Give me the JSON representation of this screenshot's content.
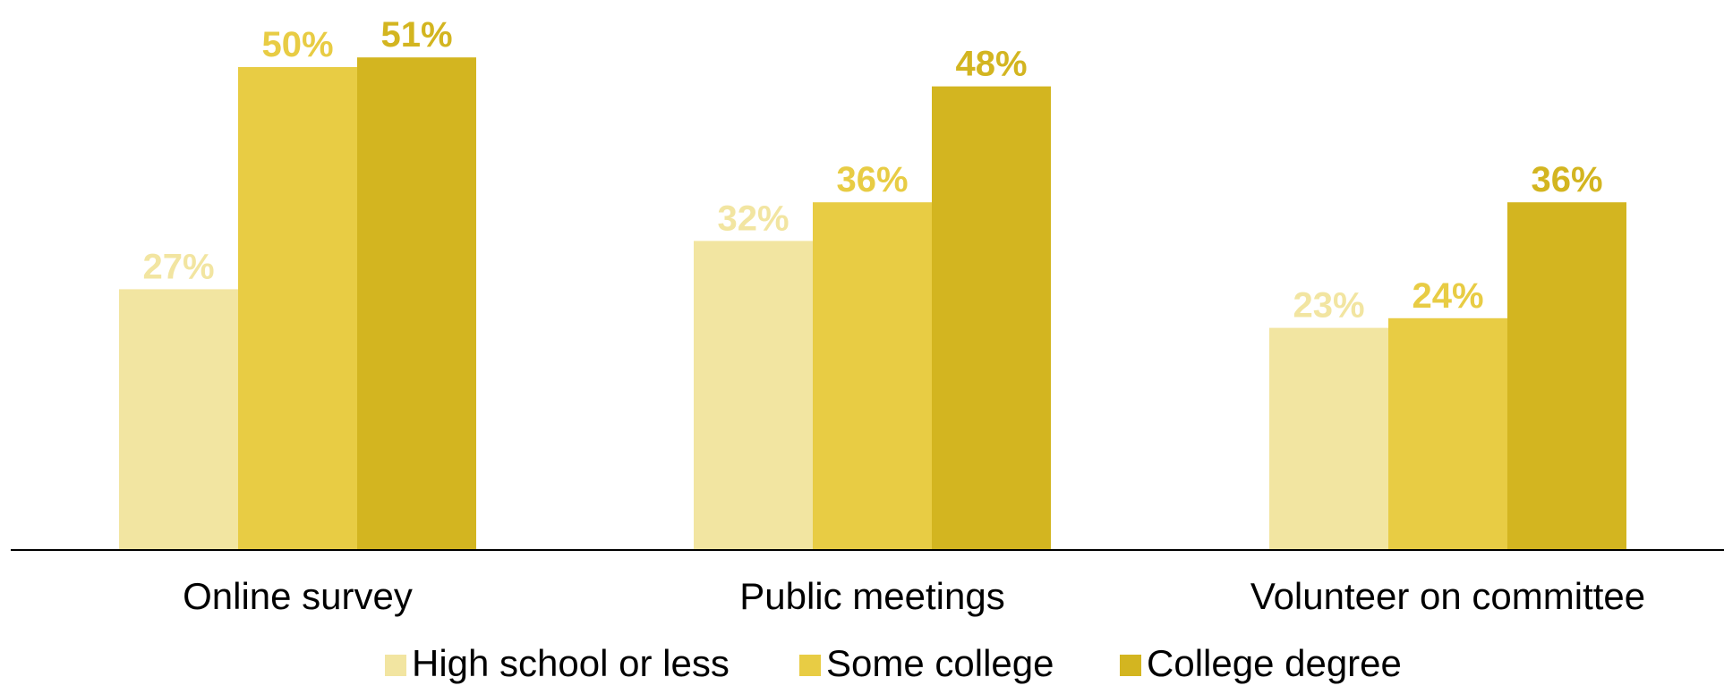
{
  "chart_data": {
    "type": "bar",
    "categories": [
      "Online survey",
      "Public meetings",
      "Volunteer on committee"
    ],
    "series": [
      {
        "name": "High school or less",
        "color": "#f2e5a1",
        "values": [
          27,
          32,
          23
        ],
        "labels": [
          "27%",
          "32%",
          "23%"
        ]
      },
      {
        "name": "Some college",
        "color": "#e8cc44",
        "values": [
          50,
          36,
          24
        ],
        "labels": [
          "50%",
          "36%",
          "24%"
        ]
      },
      {
        "name": "College degree",
        "color": "#d3b520",
        "values": [
          51,
          48,
          36
        ],
        "labels": [
          "51%",
          "48%",
          "36%"
        ]
      }
    ],
    "ylim": [
      0,
      55
    ],
    "legend_position": "bottom",
    "grid": false
  }
}
